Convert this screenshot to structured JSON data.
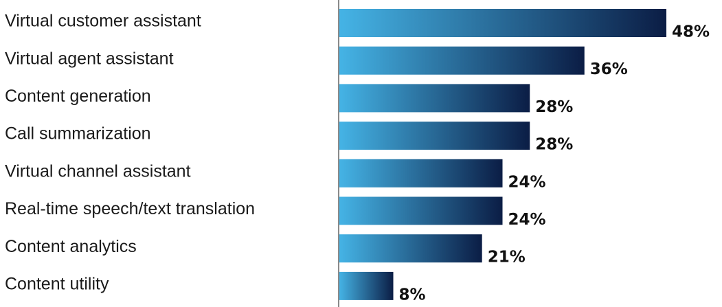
{
  "chart_data": {
    "type": "bar",
    "orientation": "horizontal",
    "categories": [
      "Virtual customer assistant",
      "Virtual agent assistant",
      "Content generation",
      "Call summarization",
      "Virtual channel assistant",
      "Real-time speech/text translation",
      "Content analytics",
      "Content utility"
    ],
    "values": [
      48,
      36,
      28,
      28,
      24,
      24,
      21,
      8
    ],
    "value_labels": [
      "48%",
      "36%",
      "28%",
      "28%",
      "24%",
      "24%",
      "21%",
      "8%"
    ],
    "unit": "%",
    "xlim": [
      0,
      48
    ],
    "title": "",
    "xlabel": "",
    "ylabel": "",
    "grid": false,
    "legend": "none",
    "colors": {
      "bar_gradient_start": "#45b4e6",
      "bar_gradient_end": "#0b1d45",
      "axis_line": "#8a8a8a",
      "label_text": "#1a1a1a",
      "value_text": "#111111"
    }
  }
}
